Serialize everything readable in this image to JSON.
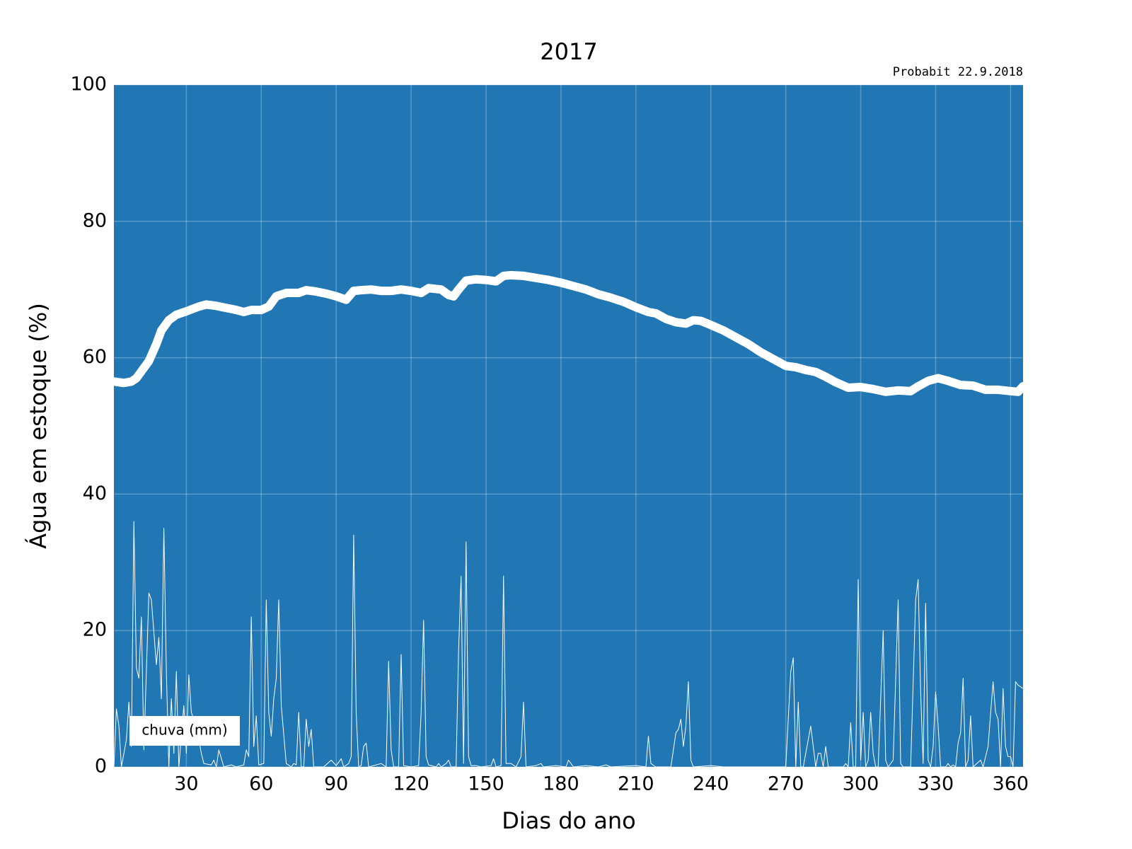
{
  "chart_data": {
    "type": "line",
    "title": "2017",
    "annotation": "Probabit 22.9.2018",
    "annotation_color": "#1f77b4",
    "xlabel": "Dias do ano",
    "ylabel": "Água em estoque (%)",
    "facecolor": "#2077b4",
    "grid": true,
    "legend": "lower left",
    "xlim": [
      1,
      365
    ],
    "xticks": [
      30,
      60,
      90,
      120,
      150,
      180,
      210,
      240,
      270,
      300,
      330,
      360
    ],
    "ylim": [
      0,
      100
    ],
    "yticks": [
      0,
      20,
      40,
      60,
      80,
      100
    ],
    "series": [
      {
        "color": "#ffffff",
        "width": 12,
        "x": [
          1,
          5,
          8,
          10,
          12,
          15,
          18,
          20,
          23,
          26,
          30,
          35,
          38,
          42,
          46,
          50,
          53,
          56,
          60,
          63,
          66,
          70,
          75,
          78,
          82,
          86,
          90,
          94,
          97,
          100,
          104,
          108,
          112,
          116,
          120,
          124,
          127,
          132,
          135,
          137,
          139,
          142,
          146,
          150,
          154,
          157,
          160,
          165,
          170,
          175,
          180,
          185,
          190,
          195,
          200,
          205,
          210,
          215,
          218,
          222,
          226,
          230,
          233,
          236,
          240,
          245,
          250,
          255,
          260,
          265,
          270,
          274,
          278,
          282,
          286,
          290,
          295,
          300,
          305,
          310,
          315,
          320,
          323,
          327,
          331,
          335,
          340,
          345,
          350,
          355,
          360,
          363,
          365
        ],
        "values": [
          56.5,
          56.3,
          56.5,
          57,
          58,
          59.5,
          62,
          64,
          65.5,
          66.3,
          66.8,
          67.5,
          67.8,
          67.6,
          67.3,
          67,
          66.7,
          67,
          67,
          67.5,
          69,
          69.5,
          69.5,
          69.9,
          69.7,
          69.4,
          69,
          68.5,
          69.8,
          69.9,
          70,
          69.8,
          69.8,
          70,
          69.8,
          69.5,
          70.2,
          70,
          69.2,
          69,
          70,
          71.3,
          71.5,
          71.4,
          71.2,
          72,
          72.1,
          72,
          71.7,
          71.4,
          71,
          70.5,
          70,
          69.3,
          68.8,
          68.2,
          67.4,
          66.7,
          66.5,
          65.7,
          65.2,
          65,
          65.5,
          65.4,
          64.8,
          64,
          63,
          62,
          60.8,
          59.8,
          58.8,
          58.6,
          58.2,
          57.9,
          57.2,
          56.4,
          55.6,
          55.7,
          55.4,
          55,
          55.2,
          55.1,
          55.8,
          56.6,
          57,
          56.6,
          56,
          55.9,
          55.3,
          55.3,
          55.1,
          55,
          55.8
        ]
      },
      {
        "name": "chuva (mm)",
        "color": "#ffffff",
        "width": 1,
        "x": [
          1,
          2,
          3,
          4,
          6,
          7,
          8,
          9,
          10,
          11,
          12,
          13,
          14,
          15,
          16,
          18,
          19,
          20,
          21,
          22,
          23,
          24,
          25,
          26,
          27,
          29,
          30,
          31,
          32,
          34,
          36,
          37,
          40,
          41,
          42,
          43,
          45,
          48,
          50,
          53,
          54,
          55,
          56,
          57,
          58,
          59,
          61,
          62,
          63,
          64,
          65,
          66,
          67,
          68,
          70,
          72,
          73,
          74,
          75,
          76,
          77,
          78,
          79,
          80,
          81,
          85,
          88,
          90,
          92,
          93,
          95,
          96,
          97,
          98,
          99,
          100,
          101,
          102,
          103,
          108,
          110,
          111,
          112,
          113,
          115,
          116,
          117,
          120,
          123,
          124,
          125,
          126,
          127,
          130,
          131,
          132,
          134,
          135,
          136,
          138,
          139,
          140,
          141,
          142,
          143,
          144,
          146,
          148,
          152,
          153,
          154,
          156,
          157,
          158,
          160,
          162,
          164,
          165,
          166,
          170,
          172,
          173,
          178,
          182,
          183,
          184,
          185,
          190,
          195,
          198,
          200,
          210,
          214,
          215,
          216,
          218,
          224,
          226,
          227,
          228,
          229,
          230,
          231,
          232,
          233,
          240,
          245,
          270,
          272,
          273,
          274,
          275,
          276,
          277,
          279,
          280,
          281,
          282,
          283,
          284,
          285,
          286,
          287,
          293,
          294,
          295,
          296,
          297,
          298,
          299,
          300,
          301,
          302,
          303,
          304,
          305,
          306,
          307,
          309,
          310,
          311,
          313,
          315,
          316,
          317,
          320,
          322,
          323,
          324,
          325,
          326,
          327,
          328,
          329,
          330,
          331,
          332,
          334,
          335,
          336,
          337,
          338,
          339,
          340,
          341,
          342,
          343,
          344,
          345,
          348,
          349,
          351,
          353,
          354,
          355,
          356,
          357,
          358,
          359,
          360,
          361,
          362,
          363,
          365
        ],
        "values": [
          0,
          8.5,
          6,
          0,
          4,
          9.5,
          3,
          36,
          14.5,
          13,
          22,
          2.5,
          14,
          25.5,
          24.5,
          15,
          19,
          10,
          35,
          14,
          0,
          10,
          2,
          14,
          0,
          9,
          2,
          13.5,
          8,
          6,
          2,
          0.5,
          0.3,
          1,
          0,
          2.5,
          0,
          0.3,
          0,
          0.3,
          2.5,
          1.5,
          22,
          3,
          7.5,
          0.3,
          0.5,
          24.5,
          8,
          4.5,
          10,
          13,
          24.5,
          9,
          0.5,
          0,
          0.5,
          0.3,
          8,
          0,
          0,
          7,
          3,
          5.5,
          0,
          0,
          1,
          0.2,
          1.2,
          0,
          0.5,
          1.5,
          34,
          8,
          0,
          0.2,
          3,
          3.5,
          0,
          0.5,
          0,
          15.5,
          2.5,
          0,
          0,
          16.5,
          0.2,
          0,
          0.2,
          8,
          21.5,
          1.5,
          0.3,
          0,
          0.5,
          0,
          0.5,
          1,
          0,
          0,
          17,
          28,
          0.5,
          33,
          1.5,
          0.2,
          0.2,
          0,
          0.2,
          1.2,
          0,
          0.2,
          28,
          0.5,
          0.5,
          0,
          1.5,
          9.5,
          0,
          0.2,
          0.5,
          0,
          0.2,
          0,
          1,
          0.5,
          0,
          0.2,
          0,
          0.3,
          0,
          0.2,
          0,
          4.5,
          0.5,
          0,
          0,
          5,
          5.5,
          7,
          3,
          6,
          12.5,
          1,
          0,
          0.2,
          0,
          0,
          14,
          16,
          0,
          9.5,
          0,
          0,
          4,
          6,
          3,
          0,
          2,
          2,
          0,
          3,
          0,
          0,
          0.5,
          0,
          6.5,
          0,
          0,
          27.5,
          1,
          8,
          0,
          1,
          8,
          2,
          0,
          0,
          20,
          1,
          0,
          1,
          24.5,
          0.5,
          0,
          0,
          24.5,
          27.5,
          11,
          0.5,
          24,
          1,
          0,
          3,
          11,
          6,
          0,
          0,
          0.5,
          0,
          0.3,
          0,
          3.5,
          5,
          13,
          0,
          1,
          7.5,
          0,
          1,
          0,
          3,
          12.5,
          8,
          7,
          0,
          11.5,
          3,
          1.5,
          1.5,
          0,
          12.5,
          12,
          11.5
        ]
      }
    ]
  }
}
